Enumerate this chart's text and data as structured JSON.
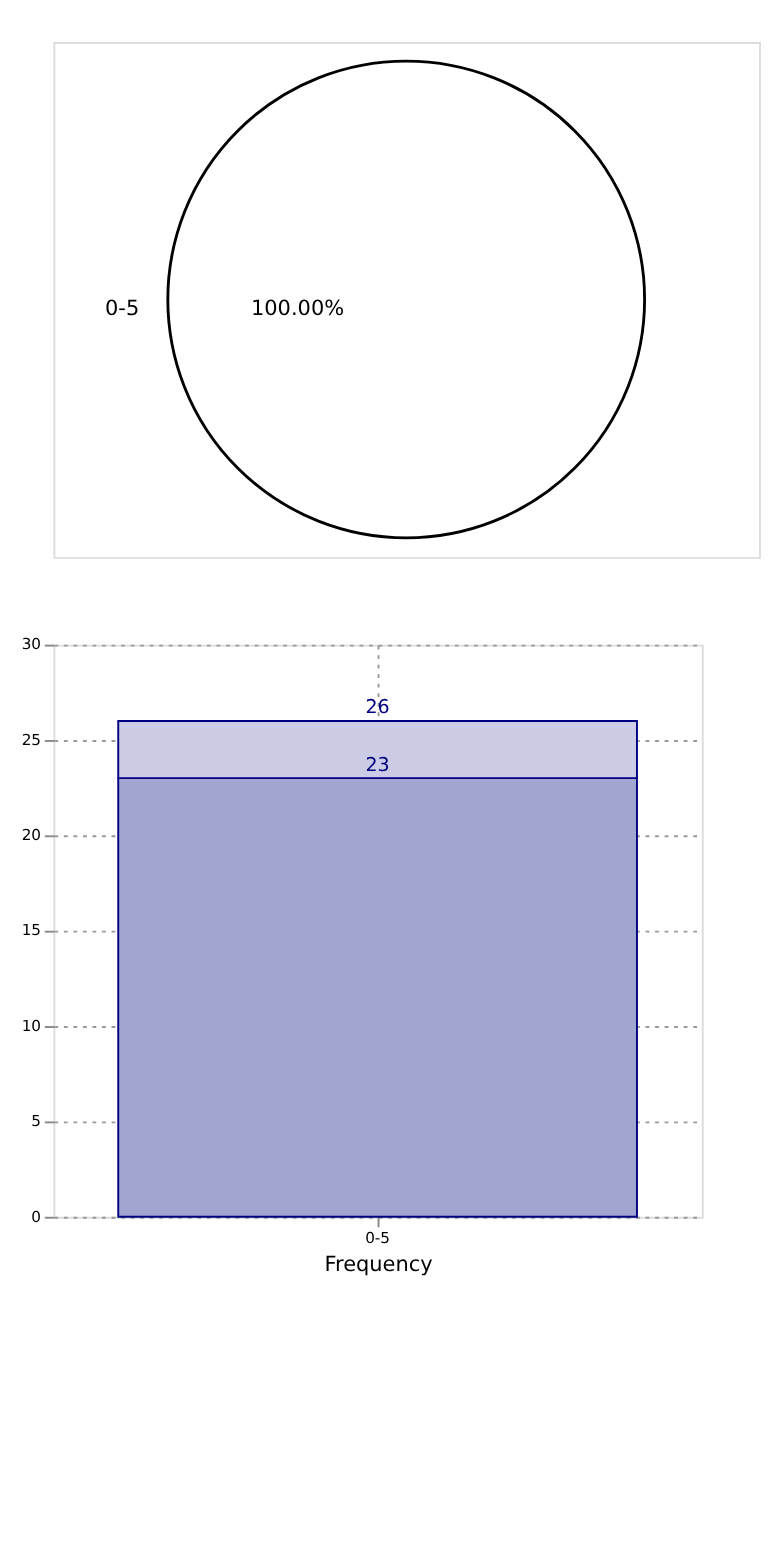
{
  "chart_data": [
    {
      "type": "pie",
      "categories": [
        "0-5"
      ],
      "values": [
        100
      ],
      "colors": [
        "#ffffff"
      ],
      "value_labels": [
        "100.00%"
      ]
    },
    {
      "type": "bar",
      "categories": [
        "0-5"
      ],
      "xlabel": "Frequency",
      "ylim": [
        0,
        30
      ],
      "yticks": [
        0,
        5,
        10,
        15,
        20,
        25,
        30
      ],
      "grid": true,
      "stacked": true,
      "totals": [
        "26"
      ],
      "series": [
        {
          "color": "#a3a5d1",
          "values": [
            23
          ],
          "value_labels": [
            "23"
          ]
        },
        {
          "color": "#ccccE6",
          "values": [
            3
          ],
          "value_labels": [
            null
          ]
        }
      ]
    }
  ]
}
